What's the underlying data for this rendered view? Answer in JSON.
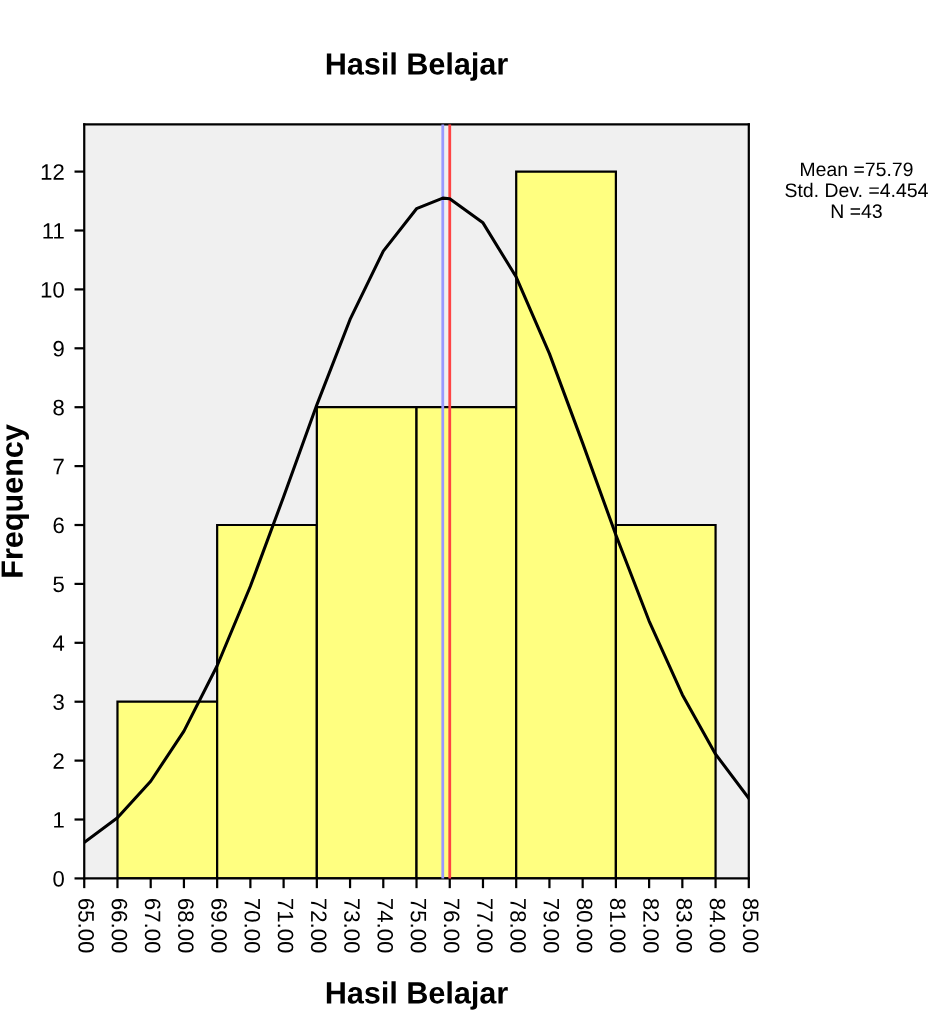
{
  "chart_data": {
    "type": "histogram",
    "title": "Hasil Belajar",
    "xlabel": "Hasil Belajar",
    "ylabel": "Frequency",
    "bins": [
      66,
      69,
      72,
      75,
      78,
      81,
      84
    ],
    "values": [
      3,
      6,
      8,
      8,
      12,
      6
    ],
    "color": "#ffff80",
    "series": [
      {
        "type": "line",
        "color": "#000000",
        "x": [
          65,
          66,
          67,
          68,
          69,
          70,
          71,
          72,
          73,
          74,
          75,
          75.79,
          76,
          77,
          78,
          79,
          80,
          81,
          82,
          83,
          84,
          85
        ],
        "values": [
          0.61,
          1.03,
          1.65,
          2.5,
          3.61,
          4.96,
          6.48,
          8.04,
          9.49,
          10.65,
          11.37,
          11.55,
          11.54,
          11.13,
          10.21,
          8.91,
          7.39,
          5.83,
          4.37,
          3.12,
          2.11,
          1.36
        ]
      }
    ],
    "ref_lines": [
      {
        "axis": "x",
        "value": 75.79,
        "color": "#9999ff"
      },
      {
        "axis": "x",
        "value": 76.0,
        "color": "#ff4444"
      }
    ],
    "xlim": [
      65,
      85
    ],
    "xticks": [
      {
        "value": 65,
        "label": "65.00"
      },
      {
        "value": 66,
        "label": "66.00"
      },
      {
        "value": 67,
        "label": "67.00"
      },
      {
        "value": 68,
        "label": "68.00"
      },
      {
        "value": 69,
        "label": "69.00"
      },
      {
        "value": 70,
        "label": "70.00"
      },
      {
        "value": 71,
        "label": "71.00"
      },
      {
        "value": 72,
        "label": "72.00"
      },
      {
        "value": 73,
        "label": "73.00"
      },
      {
        "value": 74,
        "label": "74.00"
      },
      {
        "value": 75,
        "label": "75.00"
      },
      {
        "value": 76,
        "label": "76.00"
      },
      {
        "value": 77,
        "label": "77.00"
      },
      {
        "value": 78,
        "label": "78.00"
      },
      {
        "value": 79,
        "label": "79.00"
      },
      {
        "value": 80,
        "label": "80.00"
      },
      {
        "value": 81,
        "label": "81.00"
      },
      {
        "value": 82,
        "label": "82.00"
      },
      {
        "value": 83,
        "label": "83.00"
      },
      {
        "value": 84,
        "label": "84.00"
      },
      {
        "value": 85,
        "label": "85.00"
      }
    ],
    "ylim": [
      0,
      12.8
    ],
    "yticks": [
      0,
      1,
      2,
      3,
      4,
      5,
      6,
      7,
      8,
      9,
      10,
      11,
      12
    ],
    "annotations": [
      "Mean =75.79\nStd. Dev. =4.454\nN =43"
    ],
    "grid": false,
    "legend": false
  }
}
